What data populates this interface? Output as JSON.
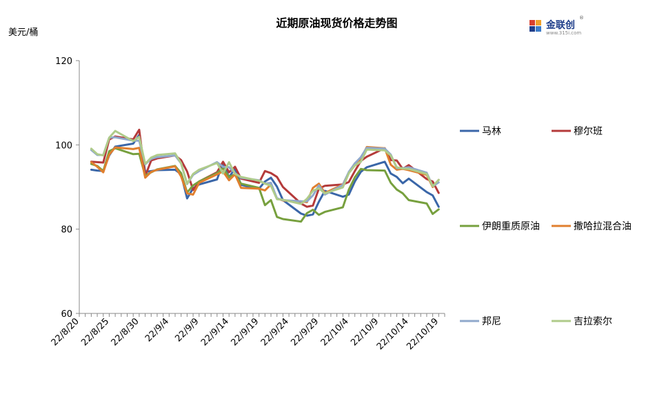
{
  "title": "近期原油现货价格走势图",
  "unit": "美元/桶",
  "logo": {
    "name": "金联创",
    "sub": "www.315i.com",
    "mark": "®"
  },
  "chart_data": {
    "type": "line",
    "ylim": [
      60,
      120
    ],
    "yticks": [
      60,
      80,
      100,
      120
    ],
    "xticks": [
      "22/8/20",
      "22/8/25",
      "22/8/30",
      "22/9/4",
      "22/9/9",
      "22/9/14",
      "22/9/19",
      "22/9/24",
      "22/9/29",
      "22/10/4",
      "22/10/9",
      "22/10/14",
      "22/10/19"
    ],
    "x": [
      "22/8/22",
      "22/8/23",
      "22/8/24",
      "22/8/25",
      "22/8/26",
      "22/8/29",
      "22/8/30",
      "22/8/31",
      "22/9/1",
      "22/9/2",
      "22/9/5",
      "22/9/6",
      "22/9/7",
      "22/9/8",
      "22/9/9",
      "22/9/12",
      "22/9/13",
      "22/9/14",
      "22/9/15",
      "22/9/16",
      "22/9/19",
      "22/9/20",
      "22/9/21",
      "22/9/22",
      "22/9/23",
      "22/9/26",
      "22/9/27",
      "22/9/28",
      "22/9/29",
      "22/9/30",
      "22/10/3",
      "22/10/4",
      "22/10/5",
      "22/10/6",
      "22/10/7",
      "22/10/10",
      "22/10/11",
      "22/10/12",
      "22/10/13",
      "22/10/14",
      "22/10/17",
      "22/10/18",
      "22/10/19"
    ],
    "legend_placement": "right",
    "grid": false,
    "series": [
      {
        "name": "马林",
        "color": "#3a66a8",
        "values": [
          94.1,
          93.9,
          93.8,
          97.5,
          99.6,
          100.3,
          102.4,
          93.6,
          93.8,
          94.0,
          94.1,
          93.0,
          87.3,
          89.7,
          90.6,
          91.8,
          95.8,
          92.3,
          94.4,
          90.5,
          89.6,
          91.3,
          92.2,
          90.1,
          86.9,
          83.7,
          83.2,
          83.5,
          86.5,
          89.1,
          87.7,
          88.2,
          91.3,
          93.6,
          94.7,
          96.0,
          93.2,
          92.4,
          90.9,
          92.0,
          88.8,
          88.0,
          85.3
        ]
      },
      {
        "name": "穆尔班",
        "color": "#b43a3a",
        "values": [
          96.0,
          95.9,
          95.8,
          101.3,
          102.0,
          101.3,
          103.6,
          92.6,
          96.3,
          96.8,
          97.5,
          96.4,
          93.7,
          89.3,
          91.3,
          93.5,
          96.0,
          93.5,
          94.8,
          92.0,
          91.0,
          93.8,
          93.3,
          92.4,
          90.0,
          86.1,
          85.3,
          85.6,
          89.6,
          90.3,
          90.6,
          91.2,
          93.8,
          96.2,
          97.2,
          99.2,
          96.4,
          96.3,
          94.3,
          95.2,
          91.9,
          91.3,
          88.6
        ]
      },
      {
        "name": "伊朗重质原油",
        "color": "#77a03e",
        "values": [
          95.5,
          95.0,
          93.8,
          98.5,
          99.2,
          97.8,
          97.9,
          92.7,
          93.5,
          94.2,
          95.0,
          93.3,
          88.7,
          90.4,
          91.3,
          93.3,
          94.5,
          92.4,
          93.0,
          90.8,
          89.8,
          85.7,
          86.9,
          82.9,
          82.4,
          81.8,
          83.8,
          84.6,
          83.4,
          84.1,
          85.2,
          89.4,
          92.3,
          94.3,
          94.0,
          93.9,
          91.0,
          89.4,
          88.5,
          86.9,
          86.1,
          83.6,
          84.7
        ]
      },
      {
        "name": "撒哈拉混合油",
        "color": "#e07f2e",
        "values": [
          95.9,
          94.8,
          93.5,
          97.7,
          99.4,
          99.0,
          99.3,
          92.2,
          93.6,
          94.1,
          94.9,
          92.5,
          88.5,
          88.2,
          91.0,
          93.0,
          93.7,
          91.6,
          93.0,
          89.8,
          89.6,
          89.2,
          90.6,
          87.3,
          86.8,
          86.6,
          86.4,
          89.8,
          90.8,
          88.6,
          90.6,
          93.5,
          95.6,
          96.7,
          99.5,
          99.2,
          95.3,
          94.1,
          94.3,
          94.0,
          92.9,
          90.0,
          91.7
        ]
      },
      {
        "name": "邦尼",
        "color": "#8fa8cc",
        "values": [
          98.8,
          97.6,
          97.6,
          101.7,
          101.8,
          101.0,
          101.0,
          95.4,
          96.7,
          97.1,
          97.5,
          95.6,
          90.7,
          92.9,
          93.8,
          95.9,
          94.8,
          94.7,
          93.3,
          92.2,
          91.6,
          90.8,
          91.0,
          87.3,
          86.9,
          86.6,
          86.6,
          88.0,
          90.4,
          88.2,
          90.5,
          93.6,
          95.6,
          97.1,
          99.3,
          99.1,
          97.7,
          94.5,
          94.5,
          94.7,
          93.4,
          90.2,
          91.1
        ]
      },
      {
        "name": "吉拉索尔",
        "color": "#afcb8a",
        "values": [
          99.1,
          97.8,
          97.5,
          101.7,
          103.3,
          100.9,
          101.9,
          95.5,
          97.0,
          97.6,
          98.0,
          95.6,
          90.8,
          93.1,
          94.1,
          95.7,
          93.2,
          95.9,
          93.1,
          92.4,
          91.5,
          90.8,
          90.3,
          87.1,
          87.0,
          86.0,
          87.2,
          89.1,
          89.7,
          88.5,
          89.9,
          93.3,
          95.1,
          96.0,
          98.9,
          98.7,
          97.5,
          94.7,
          94.4,
          94.3,
          93.1,
          90.2,
          91.7
        ]
      }
    ]
  }
}
